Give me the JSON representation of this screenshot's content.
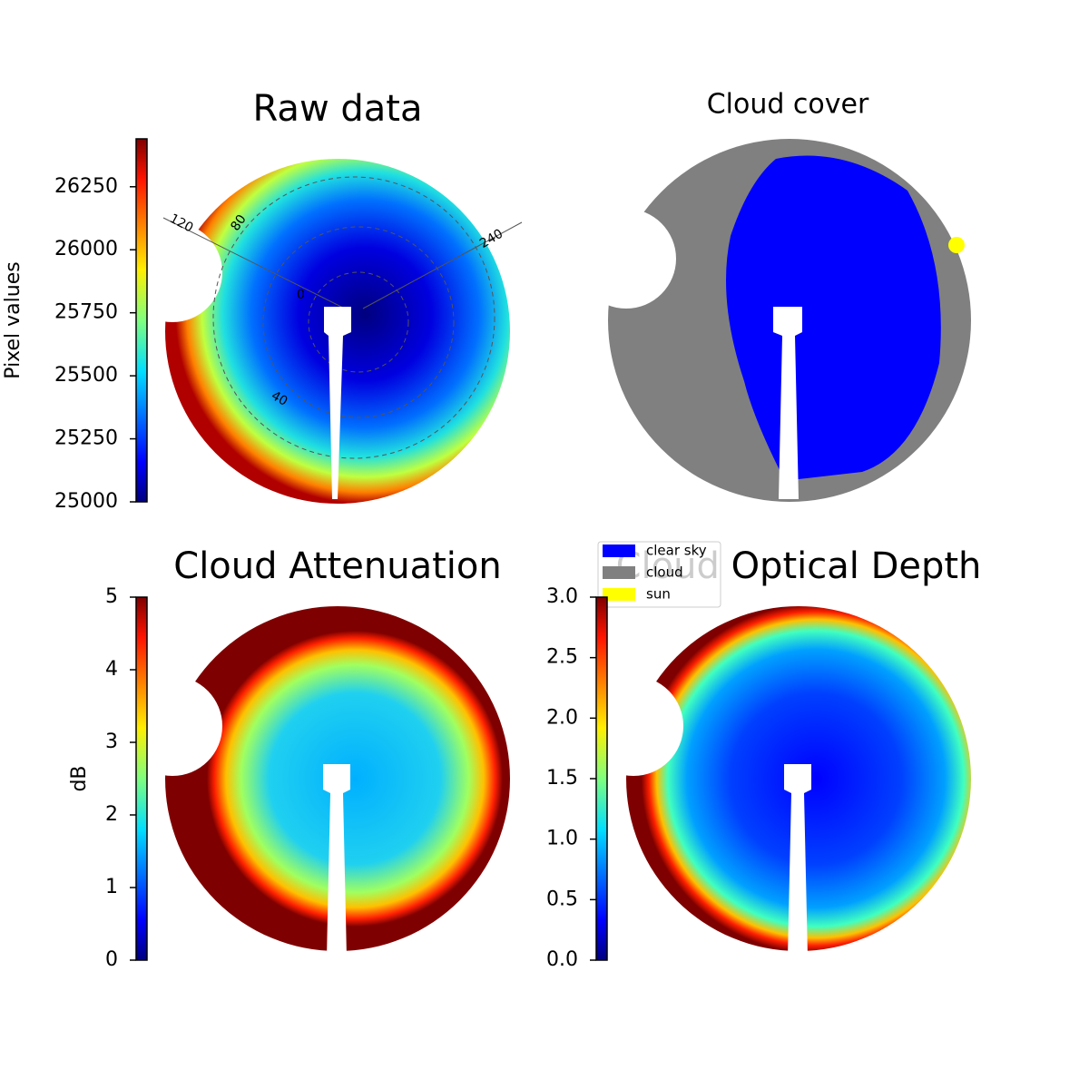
{
  "chart_data": [
    {
      "type": "image",
      "title": "Raw data",
      "colorbar_label": "Pixel values",
      "clim": [
        25000,
        26440
      ],
      "cticks": [
        25000,
        25250,
        25500,
        25750,
        26000,
        26250
      ],
      "annotations": [
        "120",
        "80",
        "240",
        "40",
        "0"
      ]
    },
    {
      "type": "image",
      "title": "Cloud cover",
      "series": [
        {
          "name": "clear sky",
          "color": "#0000ff"
        },
        {
          "name": "cloud",
          "color": "#808080"
        },
        {
          "name": "sun",
          "color": "#ffff00"
        }
      ]
    },
    {
      "type": "image",
      "title": "Cloud Attenuation",
      "colorbar_label": "dB",
      "clim": [
        0,
        5
      ],
      "cticks": [
        0,
        1,
        2,
        3,
        4,
        5
      ]
    },
    {
      "type": "image",
      "title": "Cloud Optical Depth",
      "clim": [
        0,
        3
      ],
      "cticks": [
        {
          "value": 0,
          "label": "0.0"
        },
        0.5,
        {
          "value": 1,
          "label": "1.0"
        },
        1.5,
        {
          "value": 2,
          "label": "2.0"
        },
        2.5,
        {
          "value": 3,
          "label": "3.0"
        }
      ]
    }
  ]
}
